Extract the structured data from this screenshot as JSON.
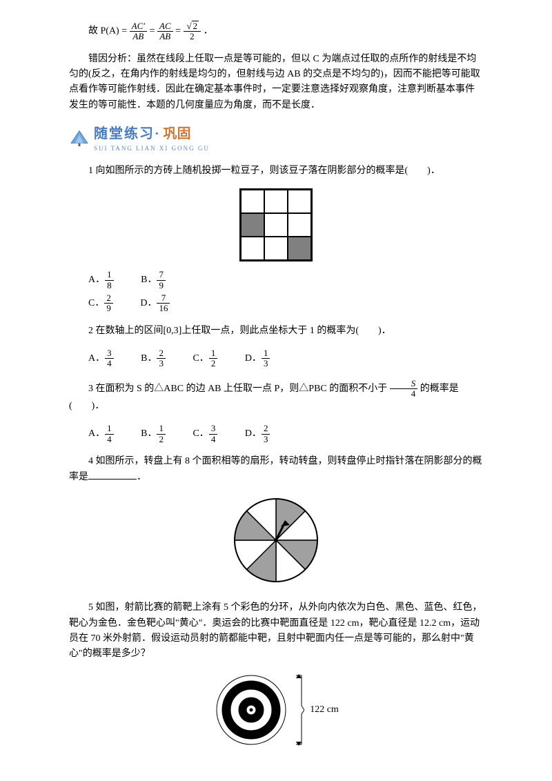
{
  "formula": {
    "lhs": "故 P(A) = ",
    "frac1_num": "AC′",
    "frac1_den": "AB",
    "eq1": " = ",
    "frac2_num": "AC",
    "frac2_den": "AB",
    "eq2": " = ",
    "frac3_num_sqrt": "2",
    "frac3_den": "2",
    "tail": "．"
  },
  "analysis": {
    "label": "错因分析：",
    "text": "虽然在线段上任取一点是等可能的，但以 C 为端点过任取的点所作的射线是不均匀的(反之，在角内作的射线是均匀的，但射线与边 AB 的交点是不均匀的)，因而不能把等可能取点看作等可能作射线．因此在确定基本事件时，一定要注意选择好观察角度，注意判断基本事件发生的等可能性．本题的几何度量应为角度，而不是长度．"
  },
  "banner": {
    "title": "随堂练习·",
    "tail": "巩固",
    "pinyin": "SUI TANG LIAN XI GONG GU"
  },
  "q1": {
    "text": "1 向如图所示的方砖上随机投掷一粒豆子，则该豆子落在阴影部分的概率是(　　)．",
    "grid_shaded": [
      [
        0,
        0,
        0
      ],
      [
        1,
        0,
        0
      ],
      [
        0,
        0,
        1
      ]
    ],
    "grid_fill": "#808080",
    "A_num": "1",
    "A_den": "8",
    "B_num": "7",
    "B_den": "9",
    "C_num": "2",
    "C_den": "9",
    "D_num": "7",
    "D_den": "16"
  },
  "q2": {
    "text": "2 在数轴上的区间[0,3]上任取一点，则此点坐标大于 1 的概率为(　　)．",
    "A_num": "3",
    "A_den": "4",
    "B_num": "2",
    "B_den": "3",
    "C_num": "1",
    "C_den": "2",
    "D_num": "1",
    "D_den": "3"
  },
  "q3": {
    "text_pre": "3 在面积为 S 的△ABC 的边 AB 上任取一点 P，则△PBC 的面积不小于 ",
    "cond_num": "S",
    "cond_den": "4",
    "text_post": " 的概率是(　　)．",
    "A_num": "1",
    "A_den": "4",
    "B_num": "1",
    "B_den": "2",
    "C_num": "3",
    "C_den": "4",
    "D_num": "2",
    "D_den": "3"
  },
  "q4": {
    "text_pre": "4 如图所示，转盘上有 8 个面积相等的扇形，转动转盘，则转盘停止时指针落在阴影部分的概率是",
    "text_post": "．",
    "sectors": 8,
    "shaded_indices": [
      0,
      2,
      4,
      6
    ],
    "shade_fill": "#a0a0a0",
    "stroke": "#000000"
  },
  "q5": {
    "text": "5 如图，射箭比赛的箭靶上涂有 5 个彩色的分环，从外向内依次为白色、黑色、蓝色、红色，靶心为金色．金色靶心叫\"黄心\"．奥运会的比赛中靶面直径是 122 cm，靶心直径是 12.2 cm，运动员在 70 米外射箭．假设运动员射的箭都能中靶，且射中靶面内任一点是等可能的，那么射中\"黄心\"的概率是多少？",
    "label": "122 cm",
    "rings": [
      {
        "r": 50,
        "fill": "#ffffff",
        "stroke": "#000000"
      },
      {
        "r": 42,
        "fill": "#000000",
        "stroke": "#000000"
      },
      {
        "r": 30,
        "fill": "#ffffff",
        "stroke": "#000000"
      },
      {
        "r": 18,
        "fill": "#000000",
        "stroke": "#000000"
      },
      {
        "r": 7,
        "fill": "#ffffff",
        "stroke": "#000000"
      },
      {
        "r": 2,
        "fill": "#000000",
        "stroke": "#000000"
      }
    ]
  },
  "labels": {
    "A": "A．",
    "B": "B．",
    "C": "C．",
    "D": "D．"
  }
}
